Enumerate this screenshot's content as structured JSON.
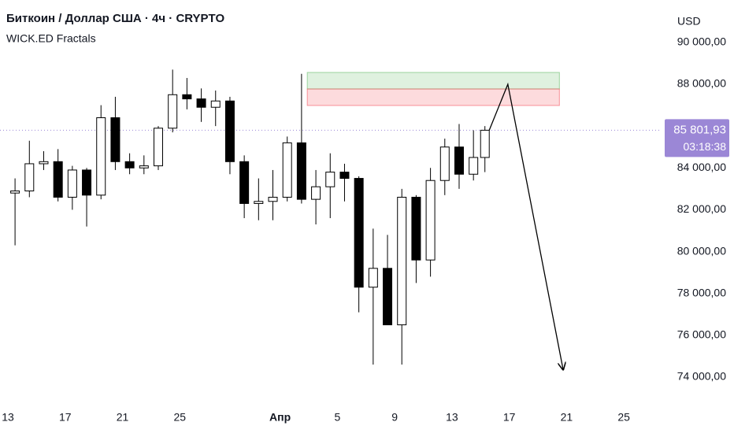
{
  "chart_data": {
    "type": "candlestick",
    "title": "Биткоин / Доллар США · 4ч · CRYPTO",
    "subtitle": "WICK.ED Fractals",
    "currency": "USD",
    "x": [
      0.5,
      1.5,
      2.5,
      3.5,
      4.5,
      5.5,
      6.5,
      7.5,
      8.5,
      9.5,
      10.5,
      11.5,
      12.5,
      13.5,
      14.5,
      15.5,
      16.5,
      17.5,
      18.5,
      19.5,
      20.5,
      21.5,
      22.5,
      23.5,
      24.5,
      25.5,
      26.5,
      27.5,
      28.5,
      29.5,
      30.5,
      31.5,
      32.5,
      33.3
    ],
    "open": [
      82800,
      82900,
      84200,
      84300,
      82600,
      83900,
      82700,
      86400,
      84300,
      84000,
      84100,
      85900,
      87500,
      87300,
      86900,
      87200,
      84300,
      82300,
      82400,
      82600,
      85200,
      82500,
      83100,
      83800,
      83500,
      78300,
      79200,
      76500,
      82600,
      79600,
      83400,
      85000,
      83700,
      84500
    ],
    "high": [
      83500,
      85300,
      84800,
      84900,
      84100,
      84000,
      87000,
      87400,
      84700,
      84600,
      86000,
      88700,
      88300,
      87800,
      87700,
      87400,
      84600,
      83500,
      83900,
      85500,
      88500,
      83900,
      84700,
      84200,
      83600,
      81100,
      80800,
      83000,
      82700,
      84000,
      85400,
      86100,
      85800,
      86000
    ],
    "low": [
      80300,
      82600,
      83900,
      82400,
      82000,
      81200,
      82500,
      83900,
      83700,
      83700,
      83900,
      85700,
      86800,
      86200,
      86000,
      83700,
      81600,
      81500,
      81500,
      82400,
      82300,
      81300,
      81600,
      82400,
      77100,
      74600,
      76500,
      74600,
      78500,
      78800,
      82700,
      83000,
      83400,
      83800
    ],
    "close": [
      82900,
      84200,
      84300,
      82600,
      83900,
      82700,
      86400,
      84300,
      84000,
      84100,
      85900,
      87500,
      87300,
      86900,
      87200,
      84300,
      82300,
      82400,
      82600,
      85200,
      82500,
      83100,
      83800,
      83500,
      78300,
      79200,
      76500,
      82600,
      79600,
      83400,
      85000,
      83700,
      84500,
      85801.93
    ],
    "up_color": "#ffffff",
    "down_color": "#000000",
    "xlim": [
      -0.55,
      45.63
    ],
    "xticks": [
      {
        "value": 0,
        "label": "13"
      },
      {
        "value": 4,
        "label": "17"
      },
      {
        "value": 8,
        "label": "21"
      },
      {
        "value": 12,
        "label": "25"
      },
      {
        "value": 19,
        "label": "Апр"
      },
      {
        "value": 23,
        "label": "5"
      },
      {
        "value": 27,
        "label": "9"
      },
      {
        "value": 31,
        "label": "13"
      },
      {
        "value": 35,
        "label": "17"
      },
      {
        "value": 39,
        "label": "21"
      },
      {
        "value": 43,
        "label": "25"
      }
    ],
    "ylim": [
      72644,
      92027
    ],
    "yticks": [
      {
        "value": 74000,
        "label": "74 000,00"
      },
      {
        "value": 76000,
        "label": "76 000,00"
      },
      {
        "value": 78000,
        "label": "78 000,00"
      },
      {
        "value": 80000,
        "label": "80 000,00"
      },
      {
        "value": 82000,
        "label": "82 000,00"
      },
      {
        "value": 84000,
        "label": "84 000,00"
      },
      {
        "value": 88000,
        "label": "88 000,00"
      },
      {
        "value": 90000,
        "label": "90 000,00"
      }
    ],
    "last_price": {
      "value": 85801.93,
      "label": "85 801,93",
      "color": "#9b87d6"
    },
    "countdown": "03:18:38",
    "zones": [
      {
        "x": [
          20.9,
          38.5
        ],
        "values": [
          87774,
          88565
        ],
        "color": "#4caf50"
      },
      {
        "x": [
          20.9,
          38.5
        ],
        "values": [
          86984,
          87774
        ],
        "color": "#f23645"
      }
    ],
    "projection": {
      "x": [
        33.6,
        34.9,
        38.76
      ],
      "values": [
        85800,
        88000,
        74360
      ],
      "color": "#000000"
    }
  }
}
